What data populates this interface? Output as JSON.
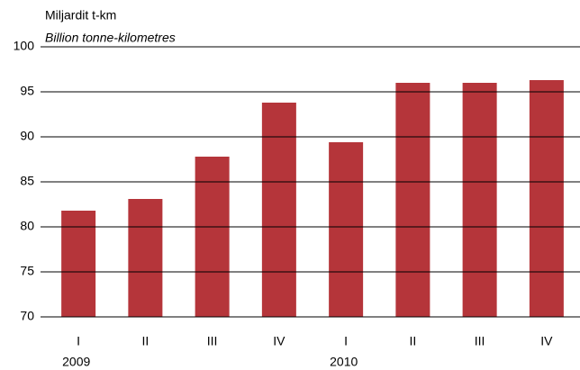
{
  "chart_data": {
    "type": "bar",
    "y_label": "Miljardit t-km",
    "y_label_en": "Billion tonne-kilometres",
    "categories": [
      "I",
      "II",
      "III",
      "IV",
      "I",
      "II",
      "III",
      "IV"
    ],
    "groups": [
      "2009",
      "2010"
    ],
    "values": [
      81.8,
      83.1,
      87.8,
      93.8,
      89.4,
      96.0,
      96.0,
      96.3
    ],
    "color": "#b5353a",
    "ylim": [
      70,
      100
    ],
    "yticks": [
      70,
      75,
      80,
      85,
      90,
      95,
      100
    ],
    "grid": true
  }
}
